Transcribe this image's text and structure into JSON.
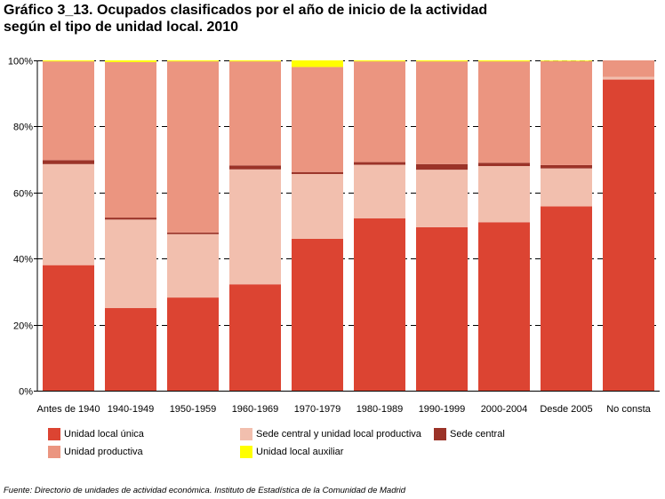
{
  "title_line1": "Gráfico 3_13. Ocupados clasificados por el año de inicio de la actividad",
  "title_line2": "según el tipo de unidad local. 2010",
  "source": "Fuente: Directorio de unidades de actividad económica. Instituto de Estadística de la Comunidad de Madrid",
  "chart_data": {
    "type": "bar",
    "stacked": true,
    "percent_stacked": true,
    "categories": [
      "Antes de 1940",
      "1940-1949",
      "1950-1959",
      "1960-1969",
      "1970-1979",
      "1980-1989",
      "1990-1999",
      "2000-2004",
      "Desde 2005",
      "No consta"
    ],
    "series": [
      {
        "name": "Unidad local única",
        "color": "#dc4432",
        "values": [
          38,
          25,
          28.2,
          32.2,
          46,
          52.2,
          49.5,
          51,
          55.8,
          94.2
        ]
      },
      {
        "name": "Sede central y unidad local productiva",
        "color": "#f2bfae",
        "values": [
          30.6,
          26.8,
          19.2,
          34.8,
          19.6,
          16.2,
          17.4,
          17,
          11.5,
          0.8
        ]
      },
      {
        "name": "Sede central",
        "color": "#9b3328",
        "values": [
          1.2,
          0.6,
          0.5,
          1.2,
          0.6,
          0.8,
          1.7,
          1,
          1,
          0
        ]
      },
      {
        "name": "Unidad productiva",
        "color": "#eb9580",
        "values": [
          29.9,
          47.1,
          51.8,
          31.5,
          31.8,
          30.5,
          31.1,
          30.7,
          31.5,
          5
        ]
      },
      {
        "name": "Unidad local auxiliar",
        "color": "#ffff00",
        "values": [
          0.3,
          0.5,
          0.3,
          0.3,
          2,
          0.3,
          0.3,
          0.3,
          0.2,
          0
        ]
      }
    ],
    "ylim": [
      0,
      100
    ],
    "yticks": [
      "0%",
      "20%",
      "40%",
      "60%",
      "80%",
      "100%"
    ],
    "grid": true,
    "legend_position": "bottom"
  }
}
